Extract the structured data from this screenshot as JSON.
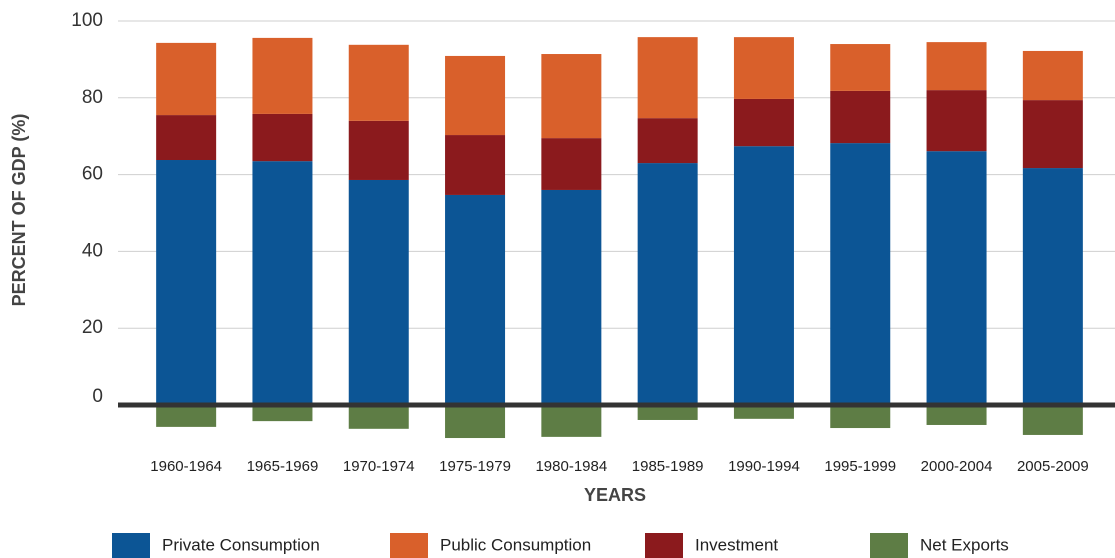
{
  "chart_data": {
    "type": "stacked_bar",
    "y_label": "PERCENT OF GDP (%)",
    "x_label": "YEARS",
    "categories": [
      "1960-1964",
      "1965-1969",
      "1970-1974",
      "1975-1979",
      "1980-1984",
      "1985-1989",
      "1990-1994",
      "1995-1999",
      "2000-2004",
      "2005-2009"
    ],
    "series": [
      {
        "name": "Private Consumption",
        "color": "#0c5595",
        "values": [
          63.8,
          63.5,
          58.6,
          54.7,
          56.0,
          63.0,
          67.4,
          68.2,
          66.1,
          61.7
        ]
      },
      {
        "name": "Public Consumption",
        "color": "#d9602b",
        "values": [
          18.8,
          19.8,
          19.8,
          20.6,
          21.9,
          21.1,
          16.1,
          12.2,
          12.5,
          12.8
        ]
      },
      {
        "name": "Investment",
        "color": "#8b1a1d",
        "values": [
          11.7,
          12.3,
          15.4,
          15.6,
          13.5,
          11.7,
          12.3,
          13.6,
          15.9,
          17.7
        ]
      },
      {
        "name": "Net Exports",
        "color": "#5e7d45",
        "values": [
          -5.7,
          -4.2,
          -6.2,
          -8.6,
          -8.3,
          -3.9,
          -3.6,
          -6.0,
          -5.2,
          -7.8
        ]
      }
    ],
    "ylim": [
      -12,
      100
    ],
    "yticks": [
      0,
      20,
      40,
      60,
      80,
      100
    ],
    "grid": true
  }
}
